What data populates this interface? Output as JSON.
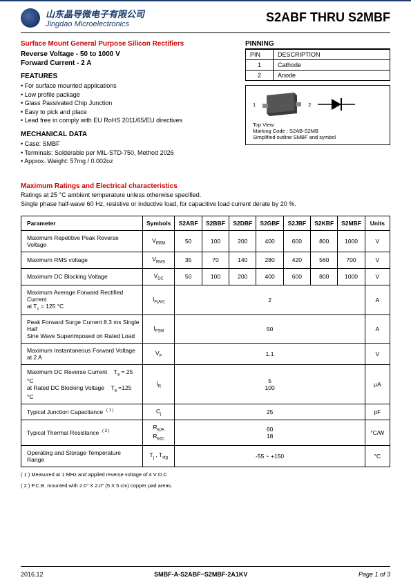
{
  "header": {
    "company_cn": "山东晶导微电子有限公司",
    "company_en": "Jingdao Microelectronics",
    "part_title": "S2ABF  THRU  S2MBF"
  },
  "titles": {
    "main": "Surface Mount General Purpose Silicon Rectifiers",
    "reverse": "Reverse Voltage - 50 to 1000 V",
    "forward": "Forward Current - 2 A",
    "features": "FEATURES",
    "mech": "MECHANICAL DATA",
    "pinning": "PINNING",
    "ratings": "Maximum Ratings and Electrical characteristics"
  },
  "features": [
    "• For surface mounted applications",
    "• Low profile package",
    "• Glass Passivated Chip Junction",
    "• Easy to pick and place",
    "• Lead free in comply with EU RoHS 2011/65/EU directives"
  ],
  "mech": [
    "• Case: SMBF",
    "• Terminals: Solderable per MIL-STD-750, Method 2026",
    "• Approx. Weight:  57mg / 0.002oz"
  ],
  "pin_table": {
    "h1": "PIN",
    "h2": "DESCRIPTION",
    "rows": [
      {
        "pin": "1",
        "desc": "Cathode"
      },
      {
        "pin": "2",
        "desc": "Anode"
      }
    ]
  },
  "pkg": {
    "pin1": "1",
    "pin2": "2",
    "topview": "Top View",
    "marking": "Marking Code :   S2AB-S2MB",
    "outline": "Simplified outline SMBF and symbol"
  },
  "ratings_sub1": "Ratings at 25 °C ambient temperature unless otherwise specified.",
  "ratings_sub2": "Single phase half-wave 60 Hz, resistive or inductive load, for capacitive load current derate by 20 %.",
  "ratings_table": {
    "headers": [
      "Parameter",
      "Symbols",
      "S2ABF",
      "S2BBF",
      "S2DBF",
      "S2GBF",
      "S2JBF",
      "S2KBF",
      "S2MBF",
      "Units"
    ],
    "rows": [
      {
        "param": "Maximum Repetitive Peak Reverse Voltage",
        "sym": "V<sub>RRM</sub>",
        "vals": [
          "50",
          "100",
          "200",
          "400",
          "600",
          "800",
          "1000"
        ],
        "unit": "V"
      },
      {
        "param": "Maximum RMS voltage",
        "sym": "V<sub>RMS</sub>",
        "vals": [
          "35",
          "70",
          "140",
          "280",
          "420",
          "560",
          "700"
        ],
        "unit": "V"
      },
      {
        "param": "Maximum DC Blocking Voltage",
        "sym": "V<sub>DC</sub>",
        "vals": [
          "50",
          "100",
          "200",
          "400",
          "600",
          "800",
          "1000"
        ],
        "unit": "V"
      },
      {
        "param": "Maximum Average Forward Rectified Current<br>at T<sub>c</sub> = 125 °C",
        "sym": "I<sub>F(AV)</sub>",
        "span": "2",
        "unit": "A"
      },
      {
        "param": "Peak Forward Surge Current 8.3 ms Single Half<br>Sine Wave Superimposed on Rated Load",
        "sym": "I<sub>FSM</sub>",
        "span": "50",
        "unit": "A"
      },
      {
        "param": "Maximum Instantaneous Forward Voltage at 2 A",
        "sym": "V<sub>F</sub>",
        "span": "1.1",
        "unit": "V"
      },
      {
        "param": "Maximum DC Reverse Current&nbsp;&nbsp;&nbsp;&nbsp;T<sub>a</sub> = 25 °C<br>at Rated DC Blocking Voltage&nbsp;&nbsp;&nbsp;&nbsp;T<sub>a</sub> =125 °C",
        "sym": "I<sub>R</sub>",
        "span": "5<br>100",
        "unit": "μA"
      },
      {
        "param": "Typical Junction Capacitance&nbsp;&nbsp;<sup>( 1 )</sup>",
        "sym": "C<sub>j</sub>",
        "span": "25",
        "unit": "pF"
      },
      {
        "param": "Typical Thermal Resistance&nbsp;&nbsp;<sup>( 2 )</sup>",
        "sym": "R<sub>θJA</sub><br>R<sub>θJC</sub>",
        "span": "60<br>18",
        "unit": "°C/W"
      },
      {
        "param": "Operating and Storage Temperature Range",
        "sym": "T<sub>j</sub> , T<sub>stg</sub>",
        "span": "-55 ~ +150",
        "unit": "°C"
      }
    ]
  },
  "notes": {
    "n1": "( 1 ) Measured at 1 MHz and applied reverse voltage of 4 V D.C",
    "n2": "( 2 ) P.C.B. mounted with 2.0\" X 2.0\" (5 X 5 cm) copper pad areas."
  },
  "footer": {
    "date": "2016.12",
    "mid": "SMBF-A-S2ABF~S2MBF-2A1KV",
    "page": "Page  1 of 3"
  }
}
